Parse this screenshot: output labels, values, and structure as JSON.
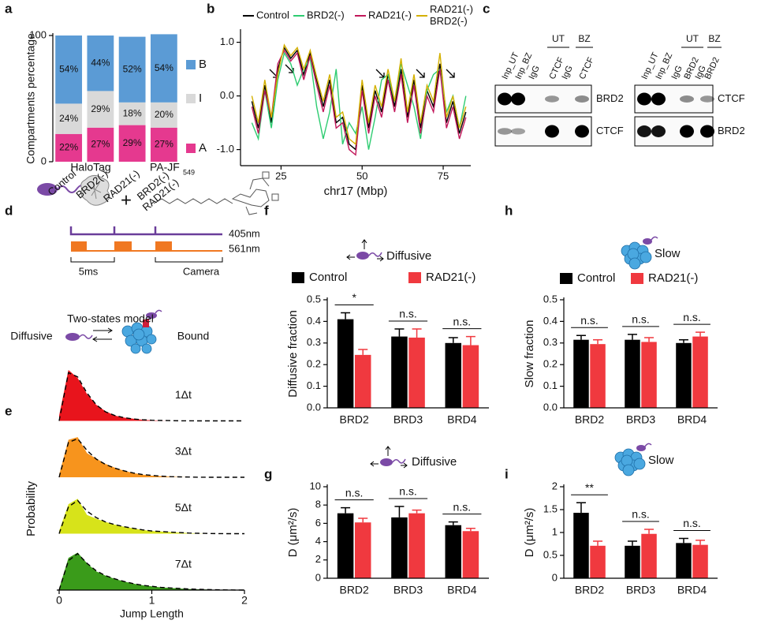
{
  "panel_labels": [
    "a",
    "b",
    "c",
    "d",
    "e",
    "f",
    "g",
    "h",
    "i"
  ],
  "blots": [
    {
      "lanes": [
        "Inp_UT",
        "Inp_BZ",
        "IgG",
        "CTCF",
        "IgG",
        "CTCF"
      ],
      "groups": [
        "UT",
        "BZ"
      ],
      "rows": [
        "BRD2",
        "CTCF"
      ]
    },
    {
      "lanes": [
        "Inp_UT",
        "Inp_BZ",
        "IgG",
        "BRD2",
        "IgG",
        "BRD2"
      ],
      "groups": [
        "UT",
        "BZ"
      ],
      "rows": [
        "CTCF",
        "BRD2"
      ]
    }
  ],
  "scheme": {
    "halotag": "HaloTag",
    "dye": "PA-JF",
    "dye_sub": "549",
    "plus": "+",
    "laser1": "405nm",
    "laser2": "561nm",
    "exposure": "5ms",
    "camera": "Camera",
    "model_title": "Two-states model",
    "state1": "Diffusive",
    "state2": "Bound"
  },
  "chart_data": [
    {
      "type": "stacked_bar",
      "ylabel": "Compartments percentage",
      "categories": [
        "Control",
        "BRD2(-)",
        "RAD21(-)",
        "BRD2(-) RAD21(-)"
      ],
      "series": [
        {
          "name": "A",
          "color": "#e5398f",
          "values": [
            22,
            27,
            29,
            27
          ],
          "value_labels": [
            "22%",
            "27%",
            "29%",
            "27%"
          ]
        },
        {
          "name": "I",
          "color": "#d9d9d9",
          "values": [
            24,
            29,
            18,
            20
          ],
          "value_labels": [
            "24%",
            "29%",
            "18%",
            "20%"
          ]
        },
        {
          "name": "B",
          "color": "#5b9bd5",
          "values": [
            54,
            44,
            52,
            54
          ],
          "value_labels": [
            "54%",
            "44%",
            "52%",
            "54%"
          ]
        }
      ],
      "ylim": [
        0,
        100
      ],
      "yticks": [
        0,
        100
      ]
    },
    {
      "type": "line",
      "xlabel": "chr17 (Mbp)",
      "x": [
        16,
        18,
        20,
        22,
        24,
        26,
        28,
        30,
        32,
        34,
        36,
        38,
        40,
        42,
        44,
        46,
        48,
        50,
        52,
        54,
        56,
        58,
        60,
        62,
        64,
        66,
        68,
        70,
        72,
        74,
        76,
        78,
        80,
        82
      ],
      "series": [
        {
          "name": "Control",
          "color": "#000000",
          "values": [
            -0.1,
            -0.6,
            0.2,
            -0.5,
            0.5,
            0.9,
            0.7,
            0.85,
            0.4,
            0.8,
            0.3,
            -0.2,
            0.3,
            -0.5,
            -0.4,
            -0.9,
            -1.0,
            0.2,
            -0.6,
            0.1,
            -0.3,
            0.4,
            -0.2,
            0.5,
            -0.4,
            0.3,
            -0.6,
            0.1,
            -0.2,
            0.6,
            -0.5,
            -0.1,
            -0.7,
            -0.3
          ]
        },
        {
          "name": "BRD2(-)",
          "color": "#2ecc71",
          "values": [
            -0.5,
            -0.8,
            0.1,
            -0.6,
            0.3,
            0.8,
            0.6,
            0.2,
            0.5,
            0.7,
            -0.2,
            -0.8,
            -0.3,
            0.5,
            -0.9,
            -0.5,
            -0.7,
            -0.2,
            -1.0,
            -0.4,
            0.3,
            0.4,
            -0.1,
            0.6,
            0.2,
            -0.2,
            -0.8,
            0.1,
            0.4,
            0.5,
            -0.3,
            0.0,
            -0.6,
            0.0
          ]
        },
        {
          "name": "RAD21(-)",
          "color": "#c2185b",
          "values": [
            -0.2,
            -0.7,
            0.1,
            -0.4,
            0.6,
            0.85,
            0.65,
            0.8,
            0.3,
            0.75,
            0.2,
            -0.3,
            0.2,
            -0.6,
            -0.5,
            -1.0,
            -1.1,
            0.1,
            -0.7,
            0.0,
            -0.4,
            0.3,
            -0.3,
            0.4,
            -0.5,
            0.2,
            -0.7,
            0.0,
            -0.3,
            0.5,
            -0.6,
            -0.2,
            -0.8,
            -0.4
          ]
        },
        {
          "name": "RAD21(-) BRD2(-)",
          "color": "#d4b000",
          "values": [
            0.0,
            -0.5,
            0.3,
            -0.4,
            0.4,
            0.95,
            0.75,
            0.9,
            0.5,
            0.85,
            0.35,
            -0.1,
            0.4,
            -0.4,
            -0.3,
            -0.8,
            -0.9,
            0.3,
            -0.5,
            0.2,
            -0.2,
            0.5,
            -0.1,
            0.7,
            -0.3,
            0.4,
            -0.5,
            0.2,
            -0.1,
            0.8,
            -0.4,
            0.0,
            -0.6,
            -0.2
          ]
        }
      ],
      "xlim": [
        12.5,
        83.5
      ],
      "ylim": [
        -1.3,
        1.2
      ],
      "xticks": [
        25,
        50,
        75
      ],
      "yticks": [
        {
          "value": -1,
          "label": "-1.0"
        },
        {
          "value": 0,
          "label": "0.0"
        },
        {
          "value": 1,
          "label": "1.0"
        }
      ]
    },
    {
      "type": "area",
      "xlabel": "Jump Length",
      "ylabel": "Probability",
      "x": [
        0,
        0.1,
        0.2,
        0.3,
        0.4,
        0.5,
        0.6,
        0.7,
        0.8,
        0.9,
        1,
        1.1,
        1.2,
        1.3,
        1.4,
        1.5,
        1.6,
        1.7,
        1.8,
        1.9,
        2
      ],
      "series": [
        {
          "name": "1Δt",
          "color": "#e8141c",
          "values": [
            0.1,
            0.95,
            0.8,
            0.5,
            0.3,
            0.18,
            0.1,
            0.06,
            0.04,
            0.02,
            0.01,
            0.005,
            0,
            0,
            0,
            0,
            0,
            0,
            0,
            0,
            0
          ],
          "fit": [
            0,
            0.9,
            0.82,
            0.52,
            0.3,
            0.17,
            0.1,
            0.06,
            0.035,
            0.02,
            0.012,
            0.007,
            0.004,
            0.002,
            0.001,
            0,
            0,
            0,
            0,
            0,
            0
          ]
        },
        {
          "name": "3Δt",
          "color": "#f7941d",
          "values": [
            0.05,
            0.7,
            0.75,
            0.45,
            0.35,
            0.25,
            0.18,
            0.12,
            0.08,
            0.05,
            0.03,
            0.02,
            0.01,
            0.005,
            0,
            0,
            0,
            0,
            0,
            0,
            0
          ],
          "fit": [
            0,
            0.65,
            0.72,
            0.5,
            0.34,
            0.24,
            0.17,
            0.12,
            0.08,
            0.05,
            0.035,
            0.02,
            0.012,
            0.007,
            0.004,
            0.002,
            0,
            0,
            0,
            0,
            0
          ]
        },
        {
          "name": "5Δt",
          "color": "#d7e31a",
          "values": [
            0.05,
            0.55,
            0.65,
            0.35,
            0.28,
            0.22,
            0.17,
            0.13,
            0.1,
            0.07,
            0.05,
            0.04,
            0.03,
            0.02,
            0.01,
            0.005,
            0,
            0,
            0,
            0,
            0
          ],
          "fit": [
            0,
            0.5,
            0.62,
            0.42,
            0.3,
            0.22,
            0.17,
            0.13,
            0.1,
            0.07,
            0.05,
            0.04,
            0.03,
            0.02,
            0.012,
            0.007,
            0.004,
            0.002,
            0,
            0,
            0
          ]
        },
        {
          "name": "7Δt",
          "color": "#3a9b1a",
          "values": [
            0.03,
            0.6,
            0.7,
            0.5,
            0.35,
            0.27,
            0.21,
            0.16,
            0.12,
            0.09,
            0.07,
            0.05,
            0.04,
            0.03,
            0.02,
            0.015,
            0.01,
            0.005,
            0,
            0,
            0
          ],
          "fit": [
            0,
            0.55,
            0.68,
            0.5,
            0.36,
            0.27,
            0.21,
            0.16,
            0.12,
            0.09,
            0.07,
            0.05,
            0.04,
            0.03,
            0.02,
            0.015,
            0.01,
            0.006,
            0.003,
            0.001,
            0
          ]
        }
      ],
      "xlim": [
        0,
        2
      ],
      "xticks": [
        0,
        1,
        2
      ],
      "ylim": [
        0,
        1
      ]
    },
    {
      "type": "bar",
      "title": "Diffusive",
      "ylabel": "Diffusive fraction",
      "categories": [
        "BRD2",
        "BRD3",
        "BRD4"
      ],
      "series": [
        {
          "name": "Control",
          "color": "#000000",
          "values": [
            0.41,
            0.33,
            0.3
          ],
          "errors": [
            0.03,
            0.035,
            0.025
          ]
        },
        {
          "name": "RAD21(-)",
          "color": "#f0393f",
          "values": [
            0.245,
            0.325,
            0.29
          ],
          "errors": [
            0.025,
            0.04,
            0.04
          ]
        }
      ],
      "annotations": [
        "*",
        "n.s.",
        "n.s."
      ],
      "legend": true,
      "ylim": [
        0,
        0.5
      ],
      "yticks": [
        {
          "value": 0,
          "label": "0.0"
        },
        0.1,
        0.2,
        0.3,
        0.4,
        0.5
      ]
    },
    {
      "type": "bar",
      "title": "Diffusive",
      "ylabel": "D (μm²/s)",
      "categories": [
        "BRD2",
        "BRD3",
        "BRD4"
      ],
      "series": [
        {
          "name": "Control",
          "color": "#000000",
          "values": [
            7.1,
            6.65,
            5.8
          ],
          "errors": [
            0.6,
            1.2,
            0.35
          ]
        },
        {
          "name": "RAD21(-)",
          "color": "#f0393f",
          "values": [
            6.1,
            7.1,
            5.15
          ],
          "errors": [
            0.45,
            0.35,
            0.3
          ]
        }
      ],
      "annotations": [
        "n.s.",
        "n.s.",
        "n.s."
      ],
      "legend": false,
      "ylim": [
        0,
        10
      ],
      "yticks": [
        0,
        2,
        4,
        6,
        8,
        10
      ]
    },
    {
      "type": "bar",
      "title": "Slow",
      "ylabel": "Slow fraction",
      "categories": [
        "BRD2",
        "BRD3",
        "BRD4"
      ],
      "series": [
        {
          "name": "Control",
          "color": "#000000",
          "values": [
            0.315,
            0.315,
            0.3
          ],
          "errors": [
            0.02,
            0.025,
            0.015
          ]
        },
        {
          "name": "RAD21(-)",
          "color": "#f0393f",
          "values": [
            0.295,
            0.305,
            0.33
          ],
          "errors": [
            0.02,
            0.02,
            0.02
          ]
        }
      ],
      "annotations": [
        "n.s.",
        "n.s.",
        "n.s."
      ],
      "legend": true,
      "ylim": [
        0,
        0.5
      ],
      "yticks": [
        {
          "value": 0,
          "label": "0.0"
        },
        0.1,
        0.2,
        0.3,
        0.4,
        0.5
      ]
    },
    {
      "type": "bar",
      "title": "Slow",
      "ylabel": "D (μm²/s)",
      "categories": [
        "BRD2",
        "BRD3",
        "BRD4"
      ],
      "series": [
        {
          "name": "Control",
          "color": "#000000",
          "values": [
            1.43,
            0.71,
            0.77
          ],
          "errors": [
            0.22,
            0.1,
            0.1
          ]
        },
        {
          "name": "RAD21(-)",
          "color": "#f0393f",
          "values": [
            0.71,
            0.97,
            0.73
          ],
          "errors": [
            0.1,
            0.1,
            0.1
          ]
        }
      ],
      "annotations": [
        "**",
        "n.s.",
        "n.s."
      ],
      "legend": false,
      "ylim": [
        0,
        2
      ],
      "yticks": [
        0,
        0.5,
        1,
        1.5,
        2
      ]
    }
  ]
}
